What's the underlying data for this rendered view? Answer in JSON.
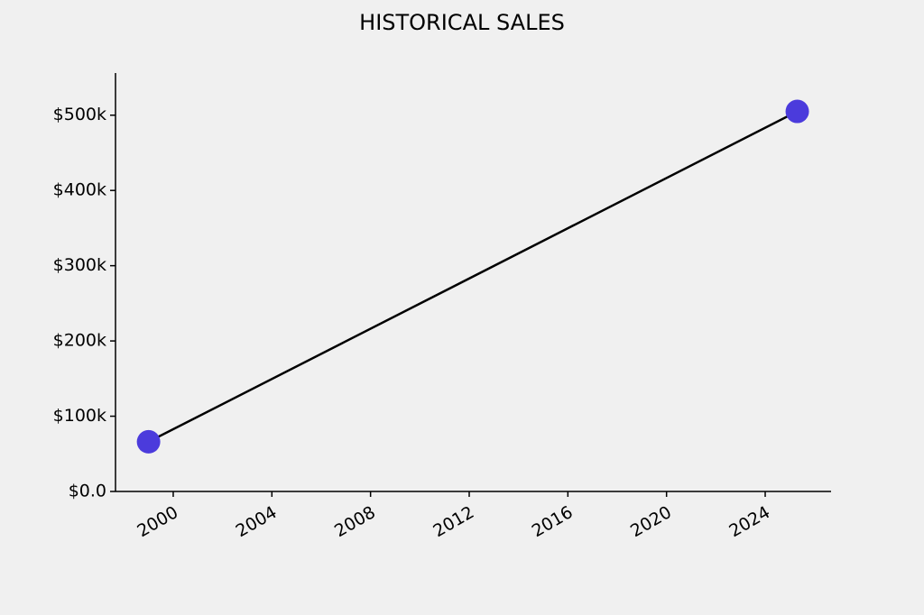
{
  "chart_data": {
    "type": "line",
    "title": "HISTORICAL SALES",
    "x": [
      1999,
      2025.3
    ],
    "values": [
      66000,
      505000
    ],
    "color": "#000000",
    "marker_color": "#4b3bdc",
    "xlim": [
      1997.66,
      2026.67
    ],
    "xticks": [
      2000,
      2004,
      2008,
      2012,
      2016,
      2020,
      2024
    ],
    "ylim": [
      0,
      556000
    ],
    "yticks": [
      {
        "value": 0,
        "label": "$0.0"
      },
      {
        "value": 100000,
        "label": "$100k"
      },
      {
        "value": 200000,
        "label": "$200k"
      },
      {
        "value": 300000,
        "label": "$300k"
      },
      {
        "value": 400000,
        "label": "$400k"
      },
      {
        "value": 500000,
        "label": "$500k"
      }
    ],
    "grid": false
  }
}
